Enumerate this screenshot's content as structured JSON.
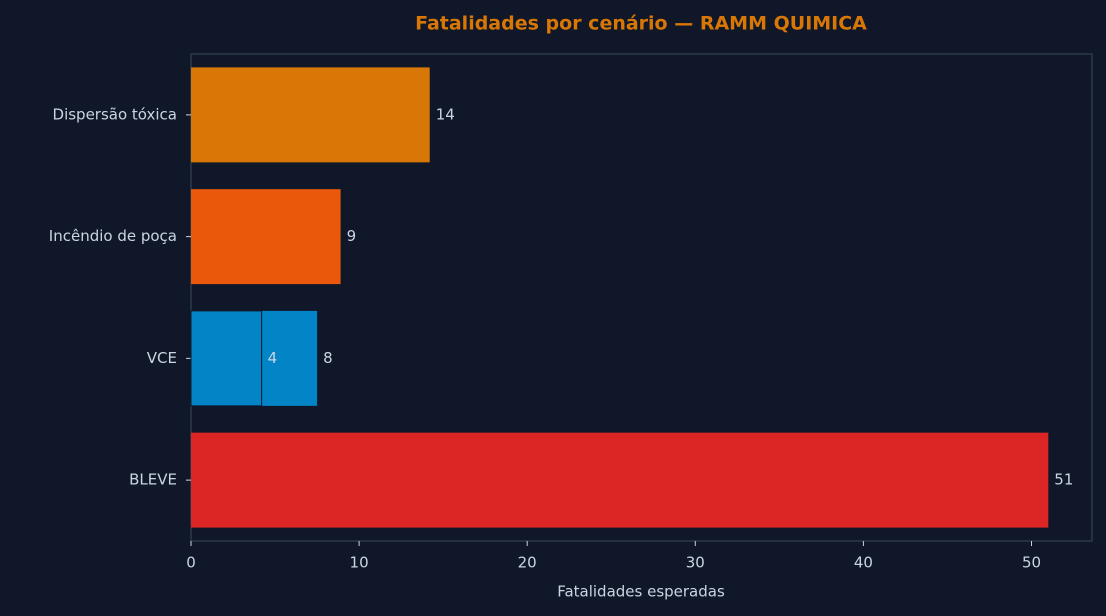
{
  "chart_data": {
    "type": "hbar",
    "title": "Fatalidades por cenário — RAMM QUIMICA",
    "x_label": "Fatalidades esperadas",
    "categories": [
      "Dispersão tóxica",
      "Incêndio de poça",
      "VCE",
      "BLEVE"
    ],
    "colors": [
      "#d97706",
      "#ea580c",
      "#0284c7",
      "#dc2626"
    ],
    "series": [
      {
        "values": [
          14.2,
          8.9,
          7.5,
          51.0
        ],
        "value_labels": [
          "14",
          "9",
          "8",
          "51"
        ]
      },
      {
        "values": [
          null,
          null,
          4.2,
          null
        ],
        "value_labels": [
          null,
          null,
          "4",
          null
        ]
      }
    ],
    "xlim": [
      0,
      53.6
    ],
    "xticks": [
      0,
      10,
      20,
      30,
      40,
      50
    ]
  }
}
